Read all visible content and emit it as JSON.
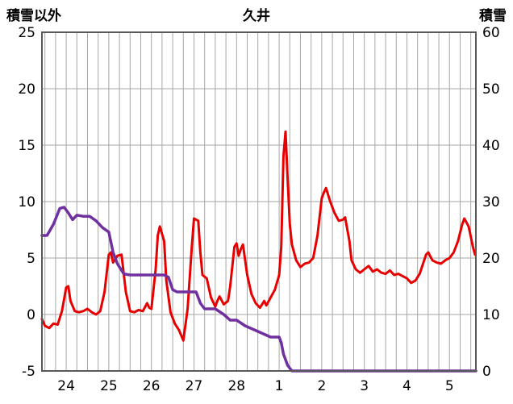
{
  "header": {
    "left_axis_title": "積雪以外",
    "title": "久井",
    "right_axis_title": "積雪"
  },
  "chart_data": {
    "type": "line",
    "title": "久井",
    "grid": true,
    "grid_color": "#a6a6a6",
    "border_color": "#595959",
    "left_axis": {
      "label": "積雪以外",
      "min": -5,
      "max": 25,
      "ticks": [
        25,
        20,
        15,
        10,
        5,
        0,
        -5
      ]
    },
    "right_axis": {
      "label": "積雪",
      "min": 0,
      "max": 60,
      "ticks": [
        60,
        50,
        40,
        30,
        20,
        10,
        0
      ]
    },
    "x_axis": {
      "min": 23.43,
      "max": 33.62,
      "minor_grid_step": 0.25,
      "tick_positions": [
        24,
        25,
        26,
        27,
        28,
        29,
        30,
        31,
        32,
        33
      ],
      "tick_labels": [
        "24",
        "25",
        "26",
        "27",
        "28",
        "1",
        "2",
        "3",
        "4",
        "5"
      ]
    },
    "series": [
      {
        "id": "non-snow-line",
        "name": "積雪以外",
        "axis": "left",
        "color": "#e60000",
        "width": 3,
        "points": [
          [
            23.43,
            -0.4
          ],
          [
            23.5,
            -1.0
          ],
          [
            23.6,
            -1.2
          ],
          [
            23.7,
            -0.8
          ],
          [
            23.8,
            -0.9
          ],
          [
            23.9,
            0.3
          ],
          [
            24.0,
            2.4
          ],
          [
            24.05,
            2.5
          ],
          [
            24.1,
            1.2
          ],
          [
            24.2,
            0.3
          ],
          [
            24.3,
            0.2
          ],
          [
            24.4,
            0.3
          ],
          [
            24.5,
            0.5
          ],
          [
            24.6,
            0.2
          ],
          [
            24.7,
            0.0
          ],
          [
            24.8,
            0.3
          ],
          [
            24.9,
            2.0
          ],
          [
            25.0,
            5.3
          ],
          [
            25.05,
            5.5
          ],
          [
            25.1,
            4.6
          ],
          [
            25.2,
            5.2
          ],
          [
            25.3,
            5.3
          ],
          [
            25.4,
            2.0
          ],
          [
            25.5,
            0.3
          ],
          [
            25.6,
            0.2
          ],
          [
            25.7,
            0.4
          ],
          [
            25.8,
            0.3
          ],
          [
            25.9,
            1.0
          ],
          [
            25.95,
            0.6
          ],
          [
            26.0,
            0.5
          ],
          [
            26.1,
            4.0
          ],
          [
            26.15,
            7.0
          ],
          [
            26.2,
            7.8
          ],
          [
            26.3,
            6.5
          ],
          [
            26.35,
            3.0
          ],
          [
            26.45,
            0.2
          ],
          [
            26.55,
            -0.8
          ],
          [
            26.65,
            -1.4
          ],
          [
            26.75,
            -2.3
          ],
          [
            26.85,
            0.5
          ],
          [
            26.95,
            6.0
          ],
          [
            27.0,
            8.5
          ],
          [
            27.1,
            8.3
          ],
          [
            27.15,
            5.5
          ],
          [
            27.2,
            3.5
          ],
          [
            27.3,
            3.2
          ],
          [
            27.4,
            1.5
          ],
          [
            27.5,
            0.7
          ],
          [
            27.55,
            1.2
          ],
          [
            27.6,
            1.6
          ],
          [
            27.7,
            0.9
          ],
          [
            27.8,
            1.2
          ],
          [
            27.85,
            2.5
          ],
          [
            27.95,
            6.0
          ],
          [
            28.0,
            6.3
          ],
          [
            28.05,
            5.2
          ],
          [
            28.1,
            5.8
          ],
          [
            28.15,
            6.2
          ],
          [
            28.25,
            3.5
          ],
          [
            28.35,
            1.8
          ],
          [
            28.45,
            1.0
          ],
          [
            28.55,
            0.6
          ],
          [
            28.65,
            1.2
          ],
          [
            28.7,
            0.8
          ],
          [
            28.8,
            1.5
          ],
          [
            28.9,
            2.2
          ],
          [
            29.0,
            3.5
          ],
          [
            29.05,
            6.0
          ],
          [
            29.1,
            14.0
          ],
          [
            29.15,
            16.2
          ],
          [
            29.2,
            12.0
          ],
          [
            29.25,
            8.0
          ],
          [
            29.3,
            6.2
          ],
          [
            29.4,
            4.8
          ],
          [
            29.5,
            4.2
          ],
          [
            29.6,
            4.5
          ],
          [
            29.7,
            4.6
          ],
          [
            29.8,
            5.0
          ],
          [
            29.9,
            7.0
          ],
          [
            30.0,
            10.3
          ],
          [
            30.05,
            10.8
          ],
          [
            30.1,
            11.2
          ],
          [
            30.2,
            10.0
          ],
          [
            30.3,
            9.0
          ],
          [
            30.4,
            8.3
          ],
          [
            30.5,
            8.4
          ],
          [
            30.55,
            8.6
          ],
          [
            30.65,
            6.5
          ],
          [
            30.7,
            4.8
          ],
          [
            30.8,
            4.0
          ],
          [
            30.9,
            3.7
          ],
          [
            31.0,
            4.0
          ],
          [
            31.1,
            4.3
          ],
          [
            31.2,
            3.8
          ],
          [
            31.3,
            4.0
          ],
          [
            31.4,
            3.7
          ],
          [
            31.5,
            3.6
          ],
          [
            31.6,
            3.9
          ],
          [
            31.7,
            3.5
          ],
          [
            31.8,
            3.6
          ],
          [
            31.9,
            3.4
          ],
          [
            32.0,
            3.2
          ],
          [
            32.1,
            2.8
          ],
          [
            32.2,
            3.0
          ],
          [
            32.3,
            3.6
          ],
          [
            32.45,
            5.3
          ],
          [
            32.5,
            5.5
          ],
          [
            32.6,
            4.8
          ],
          [
            32.7,
            4.6
          ],
          [
            32.8,
            4.5
          ],
          [
            32.9,
            4.8
          ],
          [
            33.0,
            5.0
          ],
          [
            33.1,
            5.5
          ],
          [
            33.2,
            6.5
          ],
          [
            33.3,
            8.0
          ],
          [
            33.35,
            8.5
          ],
          [
            33.45,
            7.8
          ],
          [
            33.55,
            6.0
          ],
          [
            33.6,
            5.3
          ]
        ]
      },
      {
        "id": "snow-depth-line",
        "name": "積雪",
        "axis": "right",
        "color": "#7030a0",
        "width": 3.5,
        "points": [
          [
            23.43,
            24
          ],
          [
            23.55,
            24
          ],
          [
            23.7,
            26
          ],
          [
            23.85,
            28.8
          ],
          [
            23.95,
            29
          ],
          [
            24.05,
            28
          ],
          [
            24.15,
            26.8
          ],
          [
            24.25,
            27.6
          ],
          [
            24.4,
            27.4
          ],
          [
            24.55,
            27.4
          ],
          [
            24.7,
            26.6
          ],
          [
            24.85,
            25.4
          ],
          [
            25.0,
            24.6
          ],
          [
            25.1,
            21
          ],
          [
            25.2,
            19
          ],
          [
            25.35,
            17.2
          ],
          [
            25.5,
            17
          ],
          [
            26.3,
            17
          ],
          [
            26.4,
            16.6
          ],
          [
            26.5,
            14.4
          ],
          [
            26.6,
            14
          ],
          [
            27.05,
            14
          ],
          [
            27.15,
            12
          ],
          [
            27.25,
            11
          ],
          [
            27.5,
            11
          ],
          [
            27.6,
            10.5
          ],
          [
            27.7,
            10
          ],
          [
            27.85,
            9
          ],
          [
            28.0,
            9
          ],
          [
            28.1,
            8.5
          ],
          [
            28.2,
            8
          ],
          [
            28.35,
            7.5
          ],
          [
            28.5,
            7
          ],
          [
            28.65,
            6.5
          ],
          [
            28.8,
            6
          ],
          [
            29.0,
            6
          ],
          [
            29.05,
            5
          ],
          [
            29.1,
            3
          ],
          [
            29.2,
            1
          ],
          [
            29.3,
            0
          ],
          [
            33.62,
            0
          ]
        ]
      }
    ]
  }
}
